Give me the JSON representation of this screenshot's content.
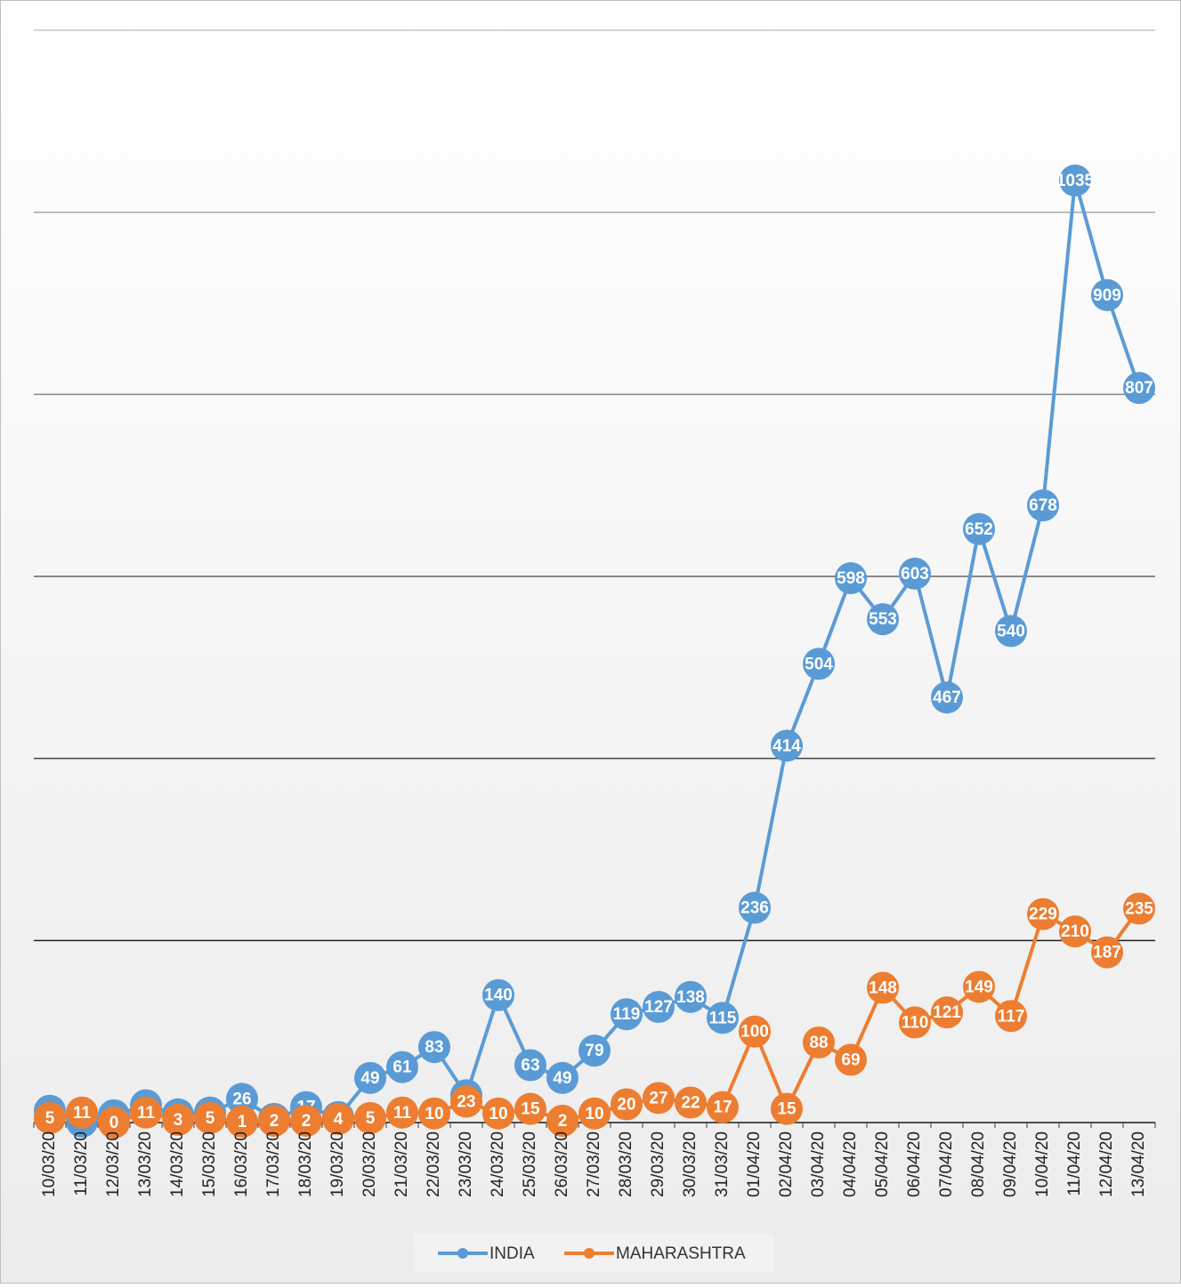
{
  "chart_data": {
    "type": "line",
    "categories": [
      "10/03/20",
      "11/03/20",
      "12/03/20",
      "13/03/20",
      "14/03/20",
      "15/03/20",
      "16/03/20",
      "17/03/20",
      "18/03/20",
      "19/03/20",
      "20/03/20",
      "21/03/20",
      "22/03/20",
      "23/03/20",
      "24/03/20",
      "25/03/20",
      "26/03/20",
      "27/03/20",
      "28/03/20",
      "29/03/20",
      "30/03/20",
      "31/03/20",
      "01/04/20",
      "02/04/20",
      "03/04/20",
      "04/04/20",
      "05/04/20",
      "06/04/20",
      "07/04/20",
      "08/04/20",
      "09/04/20",
      "10/04/20",
      "11/04/20",
      "12/04/20",
      "13/04/20"
    ],
    "series": [
      {
        "name": "INDIA",
        "color": "#5b9bd5",
        "values": [
          13,
          1,
          8,
          19,
          9,
          11,
          26,
          4,
          17,
          6,
          49,
          61,
          83,
          30,
          140,
          63,
          49,
          79,
          119,
          127,
          138,
          115,
          236,
          414,
          504,
          598,
          553,
          603,
          467,
          652,
          540,
          678,
          1035,
          909,
          807
        ]
      },
      {
        "name": "MAHARASHTRA",
        "color": "#ed7d31",
        "values": [
          5,
          11,
          0,
          11,
          3,
          5,
          1,
          2,
          2,
          4,
          5,
          11,
          10,
          23,
          10,
          15,
          2,
          10,
          20,
          27,
          22,
          17,
          100,
          15,
          88,
          69,
          148,
          110,
          121,
          149,
          117,
          229,
          210,
          187,
          235
        ]
      }
    ],
    "ylim": [
      0,
      1200
    ],
    "yticks": [
      0,
      200,
      400,
      600,
      800,
      1000,
      1200
    ],
    "grid": true,
    "legend": "bottom"
  }
}
